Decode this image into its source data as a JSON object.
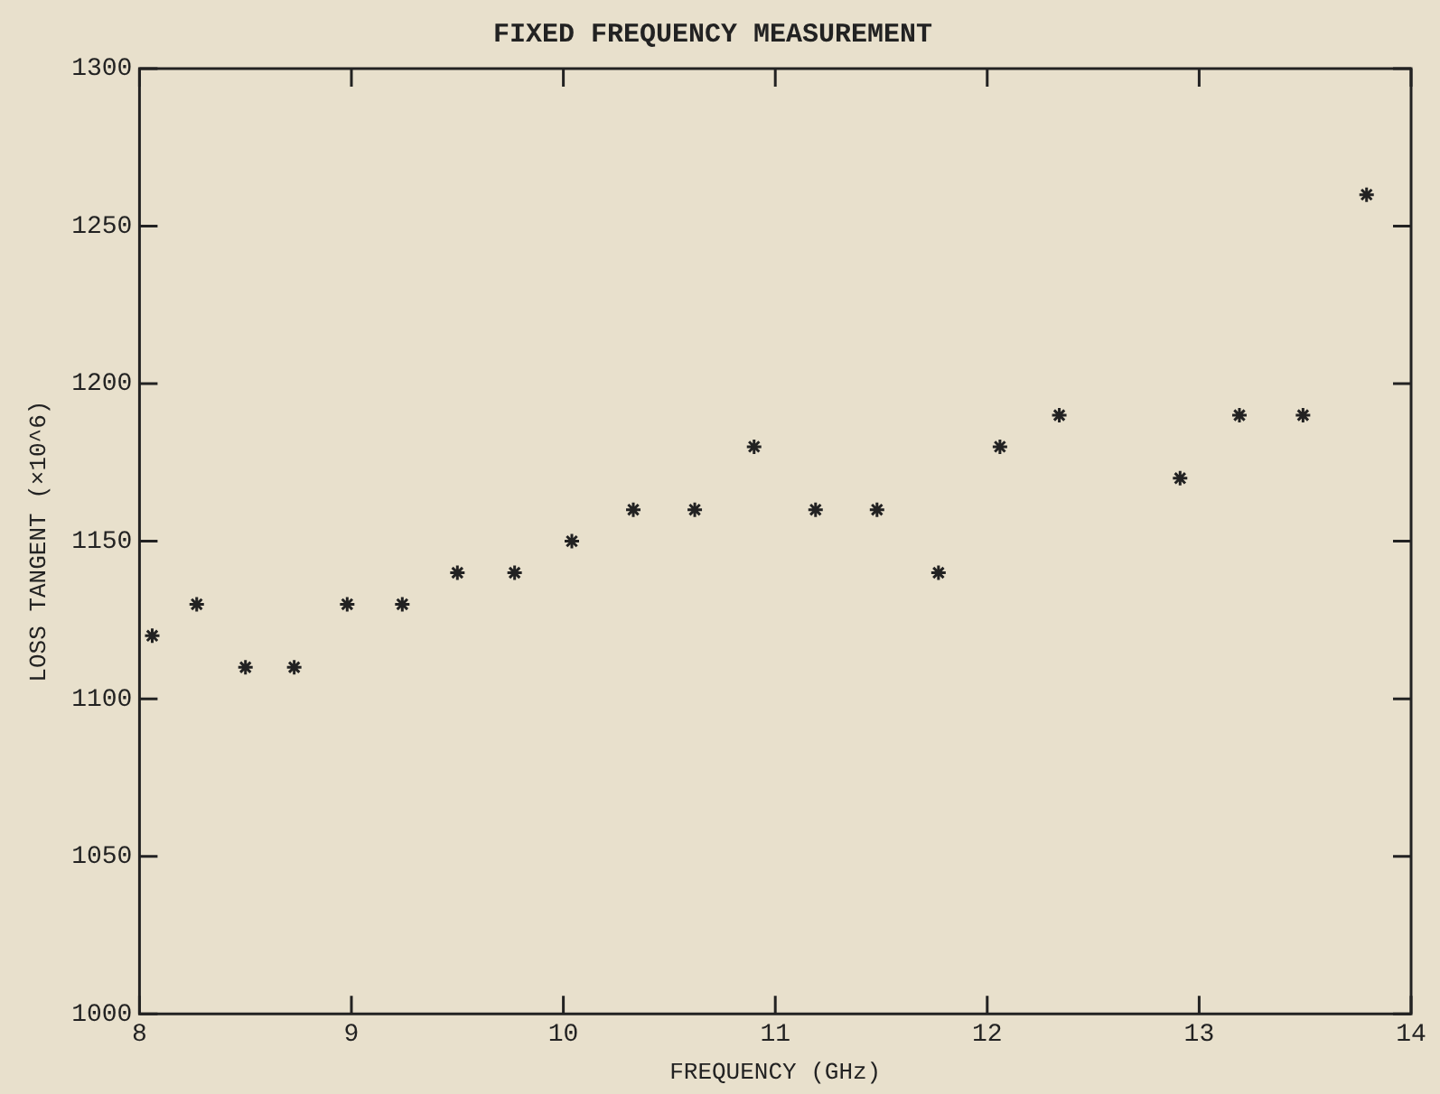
{
  "chart_data": {
    "type": "scatter",
    "title": "FIXED FREQUENCY MEASUREMENT",
    "xlabel": "FREQUENCY (GHz)",
    "ylabel": "LOSS TANGENT (×10^6)",
    "x": [
      8.06,
      8.27,
      8.5,
      8.73,
      8.98,
      9.24,
      9.5,
      9.77,
      10.04,
      10.33,
      10.62,
      10.9,
      11.19,
      11.48,
      11.77,
      12.06,
      12.34,
      12.91,
      13.19,
      13.49,
      13.79
    ],
    "series": [
      {
        "color": "#222222",
        "values": [
          1120,
          1130,
          1110,
          1110,
          1130,
          1130,
          1140,
          1140,
          1150,
          1160,
          1160,
          1180,
          1160,
          1160,
          1140,
          1180,
          1190,
          1170,
          1190,
          1190,
          1260
        ]
      }
    ],
    "xlim": [
      8,
      14
    ],
    "xticks": [
      8,
      9,
      10,
      11,
      12,
      13,
      14
    ],
    "ylim": [
      1000,
      1300
    ],
    "yticks": [
      1000,
      1050,
      1100,
      1150,
      1200,
      1250,
      1300
    ],
    "grid": false,
    "legend": false,
    "marker": "cross"
  }
}
